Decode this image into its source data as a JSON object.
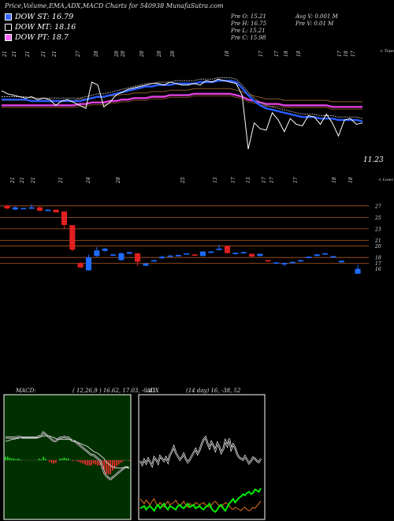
{
  "header": {
    "title": "Price,Volume,EMA,ADX,MACD Charts for 540938",
    "site": "MunafaSutra.com"
  },
  "legend": [
    {
      "label": "DOW ST: 16.79",
      "color": "#3a66ff"
    },
    {
      "label": "DOW MT: 18.16",
      "color": "#000000"
    },
    {
      "label": "DOW PT: 18.7",
      "color": "#ff66ff"
    }
  ],
  "stats": {
    "col1": [
      "Pre  O: 15.21",
      "Pre  H: 16.75",
      "Pre  L: 15.21",
      "Pre  C: 15.98"
    ],
    "col2": [
      "Avg V: 0.001 M",
      "Pre  V: 0.01 M"
    ]
  },
  "colors": {
    "ema_short": "#2b5cff",
    "ema_long": "#e040e0",
    "bull": "#1e6bff",
    "bear": "#e02020",
    "level": "#b05a20",
    "macd_bg": "#003000",
    "adx_bg": "#000000"
  },
  "top_date_labels": [
    "21",
    "21",
    "21",
    "21",
    "21",
    "27",
    "28",
    "28",
    "28",
    "28",
    "28",
    "28",
    "18",
    "17",
    "17",
    "18",
    "18",
    "17",
    "18",
    "17"
  ],
  "mid_date_labels": [
    "21",
    "21",
    "21",
    "21",
    "24",
    "28",
    "25",
    "13",
    "17",
    "13",
    "17",
    "17",
    "17",
    "18",
    "18"
  ],
  "price_label": "11.23",
  "price_axis_ticks": [
    "27",
    "25",
    "23",
    "21",
    "20",
    "18",
    "17",
    "16"
  ],
  "top_side_label": "< Topo",
  "mid_side_label": "< Lows",
  "macd": {
    "title": "MACD:",
    "params": "( 12,26,9 ) 16.62, 17.03, -0.41"
  },
  "adx": {
    "title": "ADX",
    "params": "(14  day) 16,  -38,  52"
  },
  "chart_data": {
    "type": "candlestick",
    "ema_panel": {
      "price": [
        26.6,
        26.4,
        26.3,
        26.2,
        26.1,
        26.2,
        26.0,
        26.1,
        26.0,
        25.6,
        25.9,
        26.0,
        25.8,
        25.6,
        25.4,
        27.2,
        27.0,
        25.5,
        25.8,
        26.3,
        26.5,
        26.7,
        26.8,
        26.9,
        27.0,
        27.1,
        27.1,
        27.0,
        27.2,
        27.1,
        27.0,
        27.0,
        27.1,
        27.0,
        27.3,
        27.2,
        27.4,
        27.3,
        27.2,
        27.1,
        26.3,
        22.6,
        24.4,
        24.0,
        23.9,
        25.1,
        24.6,
        23.8,
        24.7,
        24.3,
        24.2,
        24.9,
        24.8,
        24.3,
        25.0,
        24.4,
        23.5,
        24.6,
        24.7,
        24.3,
        24.4
      ],
      "ema_short": [
        26.0,
        26.0,
        26.0,
        26.0,
        26.0,
        25.9,
        25.9,
        25.9,
        25.9,
        25.9,
        25.9,
        25.9,
        25.9,
        25.9,
        26.0,
        26.1,
        26.2,
        26.2,
        26.3,
        26.4,
        26.5,
        26.6,
        26.7,
        26.8,
        26.9,
        26.9,
        27.0,
        27.0,
        27.0,
        27.1,
        27.1,
        27.1,
        27.1,
        27.2,
        27.2,
        27.2,
        27.3,
        27.3,
        27.3,
        27.2,
        26.8,
        26.3,
        25.9,
        25.6,
        25.4,
        25.3,
        25.2,
        25.1,
        25.0,
        24.9,
        24.8,
        24.8,
        24.8,
        24.7,
        24.7,
        24.7,
        24.6,
        24.6,
        24.6,
        24.6,
        24.5
      ],
      "ema_long": [
        25.6,
        25.6,
        25.6,
        25.6,
        25.6,
        25.6,
        25.6,
        25.6,
        25.6,
        25.6,
        25.6,
        25.6,
        25.6,
        25.7,
        25.7,
        25.8,
        25.8,
        25.8,
        25.9,
        25.9,
        26.0,
        26.0,
        26.1,
        26.1,
        26.1,
        26.2,
        26.2,
        26.2,
        26.3,
        26.3,
        26.3,
        26.3,
        26.4,
        26.4,
        26.4,
        26.4,
        26.4,
        26.4,
        26.4,
        26.3,
        26.2,
        26.0,
        25.9,
        25.8,
        25.7,
        25.7,
        25.7,
        25.6,
        25.6,
        25.6,
        25.6,
        25.6,
        25.6,
        25.6,
        25.6,
        25.5,
        25.5,
        25.5,
        25.5,
        25.5,
        25.5
      ]
    },
    "candles": [
      {
        "o": 27.0,
        "c": 26.6,
        "h": 27.2,
        "l": 26.4
      },
      {
        "o": 26.4,
        "c": 26.7,
        "h": 26.9,
        "l": 26.3
      },
      {
        "o": 26.6,
        "c": 26.6,
        "h": 26.6,
        "l": 26.6
      },
      {
        "o": 26.7,
        "c": 26.7,
        "h": 27.3,
        "l": 26.7
      },
      {
        "o": 26.7,
        "c": 26.2,
        "h": 26.9,
        "l": 26.1
      },
      {
        "o": 26.2,
        "c": 26.3,
        "h": 26.4,
        "l": 26.2
      },
      {
        "o": 26.3,
        "c": 25.9,
        "h": 26.3,
        "l": 25.9
      },
      {
        "o": 26.0,
        "c": 23.7,
        "h": 26.0,
        "l": 23.0
      },
      {
        "o": 23.6,
        "c": 19.4,
        "h": 23.6,
        "l": 19.1
      },
      {
        "o": 17.0,
        "c": 16.3,
        "h": 17.2,
        "l": 16.2
      },
      {
        "o": 15.8,
        "c": 18.0,
        "h": 18.5,
        "l": 15.7
      },
      {
        "o": 18.3,
        "c": 19.2,
        "h": 19.8,
        "l": 18.1
      },
      {
        "o": 19.2,
        "c": 19.5,
        "h": 19.7,
        "l": 19.0
      },
      {
        "o": 18.4,
        "c": 18.5,
        "h": 18.6,
        "l": 18.3
      },
      {
        "o": 17.6,
        "c": 18.7,
        "h": 18.9,
        "l": 17.4
      },
      {
        "o": 18.7,
        "c": 18.9,
        "h": 19.0,
        "l": 18.6
      },
      {
        "o": 18.7,
        "c": 17.3,
        "h": 18.8,
        "l": 16.5
      },
      {
        "o": 16.6,
        "c": 16.9,
        "h": 17.1,
        "l": 16.5
      },
      {
        "o": 17.4,
        "c": 17.5,
        "h": 17.6,
        "l": 17.3
      },
      {
        "o": 17.9,
        "c": 18.1,
        "h": 18.3,
        "l": 17.8
      },
      {
        "o": 18.2,
        "c": 18.3,
        "h": 18.4,
        "l": 18.1
      },
      {
        "o": 18.3,
        "c": 18.4,
        "h": 18.5,
        "l": 18.2
      },
      {
        "o": 18.6,
        "c": 18.7,
        "h": 18.7,
        "l": 18.5
      },
      {
        "o": 18.5,
        "c": 18.4,
        "h": 18.6,
        "l": 18.3
      },
      {
        "o": 18.3,
        "c": 19.0,
        "h": 19.1,
        "l": 18.2
      },
      {
        "o": 19.0,
        "c": 19.0,
        "h": 19.1,
        "l": 18.9
      },
      {
        "o": 19.4,
        "c": 19.5,
        "h": 20.2,
        "l": 19.3
      },
      {
        "o": 20.0,
        "c": 18.8,
        "h": 20.1,
        "l": 18.7
      },
      {
        "o": 18.7,
        "c": 18.8,
        "h": 18.9,
        "l": 18.6
      },
      {
        "o": 18.8,
        "c": 18.9,
        "h": 19.0,
        "l": 18.7
      },
      {
        "o": 18.6,
        "c": 18.2,
        "h": 18.7,
        "l": 18.1
      },
      {
        "o": 18.3,
        "c": 18.6,
        "h": 18.7,
        "l": 18.2
      },
      {
        "o": 17.5,
        "c": 17.4,
        "h": 17.6,
        "l": 17.3
      },
      {
        "o": 17.1,
        "c": 17.1,
        "h": 17.2,
        "l": 17.0
      },
      {
        "o": 17.0,
        "c": 17.0,
        "h": 17.1,
        "l": 16.5
      },
      {
        "o": 17.1,
        "c": 17.2,
        "h": 17.3,
        "l": 17.0
      },
      {
        "o": 17.4,
        "c": 17.5,
        "h": 17.6,
        "l": 17.3
      },
      {
        "o": 18.0,
        "c": 18.1,
        "h": 18.2,
        "l": 17.9
      },
      {
        "o": 18.3,
        "c": 18.5,
        "h": 18.6,
        "l": 18.2
      },
      {
        "o": 18.6,
        "c": 18.7,
        "h": 18.8,
        "l": 18.5
      },
      {
        "o": 18.1,
        "c": 18.2,
        "h": 18.3,
        "l": 18.0
      },
      {
        "o": 17.2,
        "c": 17.4,
        "h": 17.5,
        "l": 17.1
      },
      {
        "o": 15.2,
        "c": 16.0,
        "h": 16.75,
        "l": 15.21
      }
    ],
    "candle_slots": [
      0,
      1,
      2,
      3,
      4,
      5,
      6,
      7,
      8,
      9,
      10,
      11,
      12,
      13,
      14,
      15,
      16,
      17,
      18,
      19,
      20,
      21,
      22,
      23,
      24,
      25,
      26,
      27,
      28,
      29,
      30,
      31,
      32,
      33,
      34,
      35,
      36,
      37,
      38,
      39,
      40,
      41,
      43
    ],
    "levels": [
      27,
      25,
      23,
      21,
      20,
      18,
      17
    ],
    "macd_series": {
      "macd": [
        1.3,
        1.3,
        1.3,
        1.3,
        1.3,
        1.3,
        1.35,
        1.35,
        1.3,
        1.3,
        1.3,
        1.3,
        1.3,
        1.3,
        1.3,
        1.3,
        1.4,
        1.4,
        1.6,
        1.5,
        1.4,
        1.3,
        1.2,
        1.1,
        1.1,
        1.2,
        1.3,
        1.3,
        1.35,
        1.3,
        1.3,
        1.2,
        1.1,
        1.1,
        1.0,
        0.9,
        0.8,
        0.7,
        0.6,
        0.5,
        0.4,
        0.3,
        0.3,
        0.2,
        0.1,
        0.0,
        -0.3,
        -0.7,
        -0.9,
        -1.0,
        -1.1,
        -1.0,
        -0.9,
        -0.8,
        -0.7,
        -0.6,
        -0.5,
        -0.4,
        -0.4,
        -0.45
      ],
      "signal": [
        1.1,
        1.1,
        1.15,
        1.2,
        1.2,
        1.25,
        1.25,
        1.3,
        1.3,
        1.3,
        1.3,
        1.3,
        1.3,
        1.3,
        1.3,
        1.3,
        1.3,
        1.35,
        1.4,
        1.4,
        1.4,
        1.4,
        1.35,
        1.3,
        1.25,
        1.2,
        1.2,
        1.2,
        1.2,
        1.2,
        1.2,
        1.2,
        1.15,
        1.1,
        1.05,
        1.0,
        0.95,
        0.9,
        0.85,
        0.8,
        0.7,
        0.6,
        0.5,
        0.45,
        0.4,
        0.3,
        0.2,
        0.1,
        -0.1,
        -0.2,
        -0.3,
        -0.4,
        -0.4,
        -0.45,
        -0.45,
        -0.45,
        -0.43,
        -0.42,
        -0.41,
        -0.41
      ],
      "hist": [
        0.2,
        0.2,
        0.15,
        0.1,
        0.1,
        0.05,
        0.1,
        0.05,
        0.0,
        0.0,
        0.0,
        0.0,
        0.0,
        0.0,
        0.0,
        0.0,
        0.1,
        0.05,
        0.2,
        0.1,
        0.0,
        -0.1,
        -0.15,
        -0.2,
        -0.15,
        0.0,
        0.1,
        0.1,
        0.15,
        0.1,
        0.1,
        0.0,
        -0.05,
        0.0,
        -0.05,
        -0.1,
        -0.15,
        -0.2,
        -0.25,
        -0.3,
        -0.3,
        -0.3,
        -0.2,
        -0.25,
        -0.3,
        -0.3,
        -0.5,
        -0.8,
        -0.8,
        -0.8,
        -0.8,
        -0.6,
        -0.5,
        -0.35,
        -0.25,
        -0.15,
        -0.07,
        0.02,
        0.01,
        -0.04
      ]
    },
    "adx_series": {
      "adx": [
        48,
        45,
        49,
        46,
        50,
        47,
        44,
        51,
        49,
        46,
        52,
        50,
        48,
        51,
        47,
        53,
        56,
        60,
        55,
        52,
        49,
        51,
        54,
        50,
        47,
        49,
        52,
        55,
        58,
        54,
        57,
        62,
        66,
        68,
        63,
        59,
        64,
        61,
        57,
        63,
        60,
        55,
        58,
        65,
        61,
        67,
        58,
        62,
        59,
        54,
        51,
        50,
        49,
        52,
        49,
        46,
        48,
        51,
        50,
        48,
        47,
        50
      ],
      "plus_di": [
        8,
        9,
        10,
        7,
        9,
        10,
        8,
        6,
        9,
        11,
        8,
        10,
        12,
        9,
        7,
        10,
        9,
        8,
        7,
        10,
        11,
        9,
        8,
        10,
        12,
        9,
        10,
        11,
        8,
        9,
        10,
        8,
        7,
        9,
        10,
        12,
        8,
        6,
        5,
        7,
        10,
        11,
        8,
        6,
        9,
        12,
        14,
        16,
        13,
        15,
        17,
        18,
        20,
        19,
        21,
        22,
        20,
        21,
        24,
        23,
        22,
        25
      ],
      "minus_di": [
        16,
        14,
        12,
        15,
        13,
        11,
        14,
        16,
        12,
        10,
        13,
        11,
        9,
        12,
        14,
        11,
        12,
        13,
        15,
        12,
        10,
        12,
        14,
        11,
        9,
        12,
        11,
        10,
        13,
        12,
        11,
        12,
        13,
        11,
        10,
        9,
        11,
        13,
        14,
        12,
        10,
        9,
        11,
        13,
        12,
        10,
        8,
        7,
        9,
        8,
        7,
        6,
        8,
        9,
        7,
        6,
        7,
        9,
        8,
        10,
        12,
        14
      ]
    }
  }
}
